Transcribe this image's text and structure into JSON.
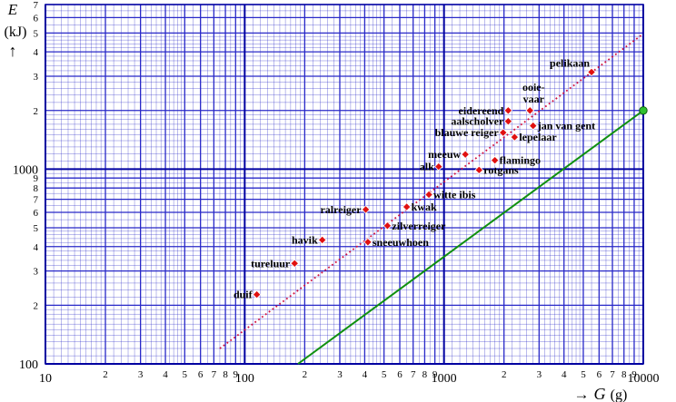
{
  "chart_data": {
    "type": "scatter",
    "xscale": "log",
    "yscale": "log",
    "xlim": [
      10,
      10000
    ],
    "ylim": [
      100,
      7000
    ],
    "grid": true,
    "xlabel": {
      "arrow": "→",
      "symbol": "G",
      "unit": "(g)"
    },
    "ylabel": {
      "symbol": "E",
      "unit": "(kJ)",
      "arrow": "↑"
    },
    "x_major_ticks": [
      {
        "value": 10,
        "label": "10"
      },
      {
        "value": 100,
        "label": "100"
      },
      {
        "value": 1000,
        "label": "1000"
      },
      {
        "value": 10000,
        "label": "10000"
      }
    ],
    "x_minor_ticks": [
      {
        "value": 20,
        "label": "2"
      },
      {
        "value": 30,
        "label": "3"
      },
      {
        "value": 40,
        "label": "4"
      },
      {
        "value": 50,
        "label": "5"
      },
      {
        "value": 60,
        "label": "6"
      },
      {
        "value": 70,
        "label": "7"
      },
      {
        "value": 80,
        "label": "8"
      },
      {
        "value": 90,
        "label": "9"
      },
      {
        "value": 200,
        "label": "2"
      },
      {
        "value": 300,
        "label": "3"
      },
      {
        "value": 400,
        "label": "4"
      },
      {
        "value": 500,
        "label": "5"
      },
      {
        "value": 600,
        "label": "6"
      },
      {
        "value": 700,
        "label": "7"
      },
      {
        "value": 800,
        "label": "8"
      },
      {
        "value": 900,
        "label": "9"
      },
      {
        "value": 2000,
        "label": "2"
      },
      {
        "value": 3000,
        "label": "3"
      },
      {
        "value": 4000,
        "label": "4"
      },
      {
        "value": 5000,
        "label": "5"
      },
      {
        "value": 6000,
        "label": "6"
      },
      {
        "value": 7000,
        "label": "7"
      },
      {
        "value": 8000,
        "label": "8"
      },
      {
        "value": 9000,
        "label": "9"
      }
    ],
    "y_major_ticks": [
      {
        "value": 100,
        "label": "100"
      },
      {
        "value": 1000,
        "label": "1000"
      }
    ],
    "y_minor_ticks": [
      {
        "value": 200,
        "label": "2"
      },
      {
        "value": 300,
        "label": "3"
      },
      {
        "value": 400,
        "label": "4"
      },
      {
        "value": 500,
        "label": "5"
      },
      {
        "value": 600,
        "label": "6"
      },
      {
        "value": 700,
        "label": "7"
      },
      {
        "value": 800,
        "label": "8"
      },
      {
        "value": 900,
        "label": "9"
      },
      {
        "value": 2000,
        "label": "2"
      },
      {
        "value": 3000,
        "label": "3"
      },
      {
        "value": 4000,
        "label": "4"
      },
      {
        "value": 5000,
        "label": "5"
      },
      {
        "value": 6000,
        "label": "6"
      },
      {
        "value": 7000,
        "label": "7"
      }
    ],
    "points": [
      {
        "name": "duif",
        "x": 115,
        "y": 227,
        "anchor": "left"
      },
      {
        "name": "tureluur",
        "x": 178,
        "y": 328,
        "anchor": "left"
      },
      {
        "name": "havik",
        "x": 245,
        "y": 433,
        "anchor": "left"
      },
      {
        "name": "ralreiger",
        "x": 405,
        "y": 620,
        "anchor": "left"
      },
      {
        "name": "sneeuwhoen",
        "x": 415,
        "y": 422,
        "anchor": "right"
      },
      {
        "name": "zilverreiger",
        "x": 520,
        "y": 512,
        "anchor": "right"
      },
      {
        "name": "kwak",
        "x": 650,
        "y": 640,
        "anchor": "right"
      },
      {
        "name": "witte ibis",
        "x": 840,
        "y": 740,
        "anchor": "right"
      },
      {
        "name": "alk",
        "x": 940,
        "y": 1030,
        "anchor": "left"
      },
      {
        "name": "meeuw",
        "x": 1280,
        "y": 1190,
        "anchor": "left"
      },
      {
        "name": "rotgans",
        "x": 1500,
        "y": 990,
        "anchor": "right"
      },
      {
        "name": "flamingo",
        "x": 1800,
        "y": 1110,
        "anchor": "right"
      },
      {
        "name": "blauwe reiger",
        "x": 1980,
        "y": 1540,
        "anchor": "left"
      },
      {
        "name": "lepelaar",
        "x": 2260,
        "y": 1460,
        "anchor": "right"
      },
      {
        "name": "aalscholver",
        "x": 2100,
        "y": 1760,
        "anchor": "left"
      },
      {
        "name": "eidereend",
        "x": 2100,
        "y": 2000,
        "anchor": "left"
      },
      {
        "name": "ooievaar",
        "x": 2700,
        "y": 2000,
        "anchor": "above",
        "label_lines": [
          "ooie-",
          "vaar"
        ]
      },
      {
        "name": "jan van gent",
        "x": 2800,
        "y": 1670,
        "anchor": "right"
      },
      {
        "name": "pelikaan",
        "x": 5500,
        "y": 3150,
        "anchor": "above"
      }
    ],
    "lines": [
      {
        "style": "dotted",
        "color": "#d01040",
        "from": [
          75,
          120
        ],
        "to": [
          10000,
          4950
        ]
      },
      {
        "style": "solid",
        "color": "#109010",
        "from": [
          185,
          100
        ],
        "to": [
          10000,
          2000
        ],
        "end_marker": true
      }
    ]
  },
  "colors": {
    "grid": "#2828c8",
    "grid_major": "#0000a0",
    "point_fill": "#e01010",
    "point_stroke": "#ffffff",
    "dotted_line": "#d01040",
    "green_line": "#109010",
    "green_marker": "#30c030"
  }
}
